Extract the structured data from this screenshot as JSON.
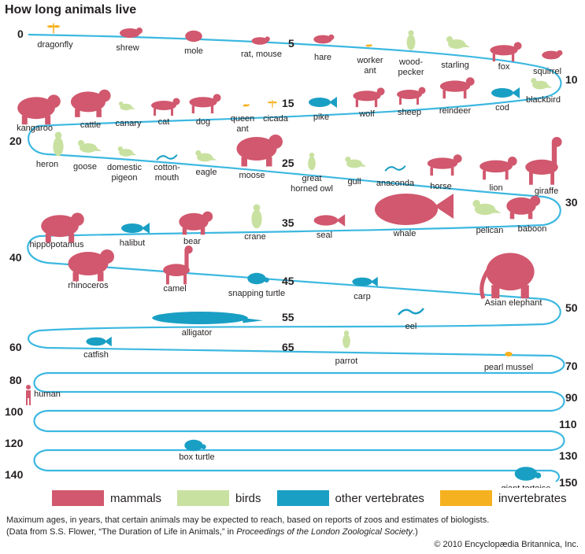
{
  "title": "How long animals live",
  "colors": {
    "mammals": "#d1586e",
    "birds": "#c8e1a0",
    "other": "#1a9fc4",
    "invertebrates": "#f5b11f",
    "path": "#3cb8e0"
  },
  "ticks": [
    "0",
    "5",
    "10",
    "15",
    "20",
    "25",
    "30",
    "35",
    "40",
    "45",
    "50",
    "55",
    "60",
    "65",
    "70",
    "80",
    "90",
    "100",
    "110",
    "120",
    "130",
    "140",
    "150"
  ],
  "animals": [
    {
      "label": [
        "dragonfly"
      ],
      "group": "invertebrates",
      "shape": "dragonfly"
    },
    {
      "label": [
        "shrew"
      ],
      "group": "mammals",
      "shape": "small"
    },
    {
      "label": [
        "mole"
      ],
      "group": "mammals",
      "shape": "round"
    },
    {
      "label": [
        "rat, mouse"
      ],
      "group": "mammals",
      "shape": "small"
    },
    {
      "label": [
        "hare"
      ],
      "group": "mammals",
      "shape": "small"
    },
    {
      "label": [
        "worker",
        "ant"
      ],
      "group": "invertebrates",
      "shape": "bug"
    },
    {
      "label": [
        "wood-",
        "pecker"
      ],
      "group": "birds",
      "shape": "bird-up"
    },
    {
      "label": [
        "starling"
      ],
      "group": "birds",
      "shape": "bird"
    },
    {
      "label": [
        "fox"
      ],
      "group": "mammals",
      "shape": "quad"
    },
    {
      "label": [
        "squirrel"
      ],
      "group": "mammals",
      "shape": "small"
    },
    {
      "label": [
        "blackbird"
      ],
      "group": "birds",
      "shape": "bird"
    },
    {
      "label": [
        "cod"
      ],
      "group": "other",
      "shape": "fish"
    },
    {
      "label": [
        "reindeer"
      ],
      "group": "mammals",
      "shape": "quad"
    },
    {
      "label": [
        "sheep"
      ],
      "group": "mammals",
      "shape": "quad"
    },
    {
      "label": [
        "wolf"
      ],
      "group": "mammals",
      "shape": "quad"
    },
    {
      "label": [
        "pike"
      ],
      "group": "other",
      "shape": "fish"
    },
    {
      "label": [
        "cicada"
      ],
      "group": "invertebrates",
      "shape": "dragonfly"
    },
    {
      "label": [
        "queen",
        "ant"
      ],
      "group": "invertebrates",
      "shape": "bug"
    },
    {
      "label": [
        "dog"
      ],
      "group": "mammals",
      "shape": "quad"
    },
    {
      "label": [
        "cat"
      ],
      "group": "mammals",
      "shape": "quad"
    },
    {
      "label": [
        "canary"
      ],
      "group": "birds",
      "shape": "bird"
    },
    {
      "label": [
        "cattle"
      ],
      "group": "mammals",
      "shape": "big"
    },
    {
      "label": [
        "kangaroo"
      ],
      "group": "mammals",
      "shape": "big"
    },
    {
      "label": [
        "heron"
      ],
      "group": "birds",
      "shape": "bird-up"
    },
    {
      "label": [
        "goose"
      ],
      "group": "birds",
      "shape": "bird"
    },
    {
      "label": [
        "domestic",
        "pigeon"
      ],
      "group": "birds",
      "shape": "bird"
    },
    {
      "label": [
        "cotton-",
        "mouth"
      ],
      "group": "other",
      "shape": "snake"
    },
    {
      "label": [
        "eagle"
      ],
      "group": "birds",
      "shape": "bird"
    },
    {
      "label": [
        "moose"
      ],
      "group": "mammals",
      "shape": "big"
    },
    {
      "label": [
        "great",
        "horned owl"
      ],
      "group": "birds",
      "shape": "bird-up"
    },
    {
      "label": [
        "gull"
      ],
      "group": "birds",
      "shape": "bird"
    },
    {
      "label": [
        "anaconda"
      ],
      "group": "other",
      "shape": "snake"
    },
    {
      "label": [
        "horse"
      ],
      "group": "mammals",
      "shape": "quad"
    },
    {
      "label": [
        "lion"
      ],
      "group": "mammals",
      "shape": "quad"
    },
    {
      "label": [
        "giraffe"
      ],
      "group": "mammals",
      "shape": "tall"
    },
    {
      "label": [
        "baboon"
      ],
      "group": "mammals",
      "shape": "big"
    },
    {
      "label": [
        "pelican"
      ],
      "group": "birds",
      "shape": "bird"
    },
    {
      "label": [
        "whale"
      ],
      "group": "mammals",
      "shape": "whale"
    },
    {
      "label": [
        "seal"
      ],
      "group": "mammals",
      "shape": "fish"
    },
    {
      "label": [
        "crane"
      ],
      "group": "birds",
      "shape": "bird-up"
    },
    {
      "label": [
        "bear"
      ],
      "group": "mammals",
      "shape": "big"
    },
    {
      "label": [
        "halibut"
      ],
      "group": "other",
      "shape": "fish"
    },
    {
      "label": [
        "hippopotamus"
      ],
      "group": "mammals",
      "shape": "big"
    },
    {
      "label": [
        "rhinoceros"
      ],
      "group": "mammals",
      "shape": "big"
    },
    {
      "label": [
        "camel"
      ],
      "group": "mammals",
      "shape": "tall"
    },
    {
      "label": [
        "snapping turtle"
      ],
      "group": "other",
      "shape": "turtle"
    },
    {
      "label": [
        "carp"
      ],
      "group": "other",
      "shape": "fish"
    },
    {
      "label": [
        "Asian elephant"
      ],
      "group": "mammals",
      "shape": "elephant"
    },
    {
      "label": [
        "eel"
      ],
      "group": "other",
      "shape": "snake"
    },
    {
      "label": [
        "alligator"
      ],
      "group": "other",
      "shape": "long"
    },
    {
      "label": [
        "catfish"
      ],
      "group": "other",
      "shape": "fish"
    },
    {
      "label": [
        "parrot"
      ],
      "group": "birds",
      "shape": "bird-up"
    },
    {
      "label": [
        "pearl mussel"
      ],
      "group": "invertebrates",
      "shape": "shell"
    },
    {
      "label": [
        "human"
      ],
      "group": "mammals",
      "shape": "human"
    },
    {
      "label": [
        "box turtle"
      ],
      "group": "other",
      "shape": "turtle"
    },
    {
      "label": [
        "giant tortoise"
      ],
      "group": "other",
      "shape": "turtle"
    }
  ],
  "legend": [
    {
      "key": "mammals",
      "label": "mammals"
    },
    {
      "key": "birds",
      "label": "birds"
    },
    {
      "key": "other",
      "label": "other vertebrates"
    },
    {
      "key": "invertebrates",
      "label": "invertebrates"
    }
  ],
  "caption": {
    "line1": "Maximum ages, in years, that certain animals may be expected to reach, based on reports of zoos and estimates of biologists.",
    "line2_prefix": "(Data from S.S. Flower, “The Duration of Life in Animals,” in ",
    "line2_italic": "Proceedings of the London Zoological Society",
    "line2_suffix": ".)"
  },
  "copyright": "© 2010 Encyclopædia Britannica, Inc."
}
